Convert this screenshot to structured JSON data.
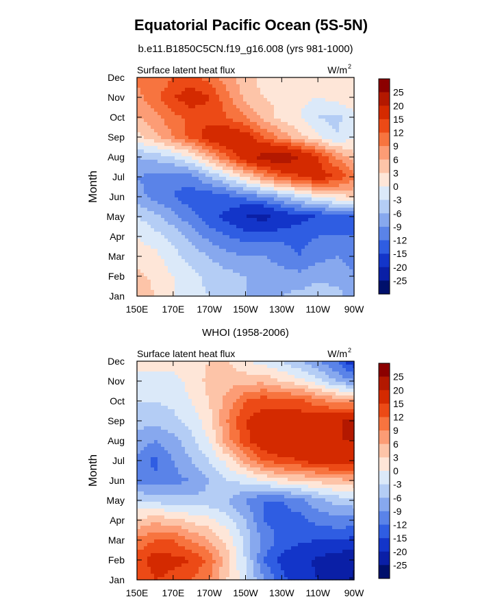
{
  "title": "Equatorial Pacific Ocean (5S-5N)",
  "colorbar": {
    "labels": [
      "25",
      "20",
      "15",
      "12",
      "9",
      "6",
      "3",
      "0",
      "-3",
      "-6",
      "-9",
      "-12",
      "-15",
      "-20",
      "-25"
    ],
    "colors_top_to_bottom": [
      "#8b0000",
      "#b31800",
      "#d42a00",
      "#ec4a16",
      "#f7743f",
      "#fc9c75",
      "#fdc4a8",
      "#fee6d8",
      "#dbe9f9",
      "#b4cdf5",
      "#87a8ee",
      "#5a83e8",
      "#2f5de2",
      "#1335c9",
      "#0a1fa6",
      "#00106b"
    ]
  },
  "chart_data": [
    {
      "type": "heatmap",
      "title": "b.e11.B1850C5CN.f19_g16.008 (yrs 981-1000)",
      "left_label": "Surface latent heat flux",
      "units": "W/m",
      "units_exp": "2",
      "ylabel": "Month",
      "x_ticks": [
        "150E",
        "170E",
        "170W",
        "150W",
        "130W",
        "110W",
        "90W"
      ],
      "y_ticks": [
        "Jan",
        "Feb",
        "Mar",
        "Apr",
        "May",
        "Jun",
        "Jul",
        "Aug",
        "Sep",
        "Oct",
        "Nov",
        "Dec"
      ],
      "values": [
        [
          6,
          3,
          0,
          -2,
          -3,
          -5,
          -6,
          -7,
          -6,
          -5,
          -4,
          -5,
          -7
        ],
        [
          4,
          2,
          0,
          -2,
          -4,
          -5,
          -6,
          -7,
          -8,
          -8,
          -7,
          -7,
          -9
        ],
        [
          2,
          1,
          -2,
          -4,
          -6,
          -8,
          -9,
          -9,
          -10,
          -12,
          -10,
          -9,
          -10
        ],
        [
          0,
          -2,
          -4,
          -7,
          -10,
          -12,
          -13,
          -13,
          -13,
          -13,
          -12,
          -12,
          -12
        ],
        [
          -3,
          -5,
          -8,
          -11,
          -14,
          -16,
          -20,
          -22,
          -18,
          -16,
          -15,
          -14,
          -13
        ],
        [
          -8,
          -10,
          -12,
          -14,
          -14,
          -13,
          -11,
          -9,
          -6,
          -3,
          0,
          2,
          3
        ],
        [
          -9,
          -10,
          -11,
          -10,
          -6,
          -2,
          3,
          8,
          12,
          15,
          17,
          15,
          10
        ],
        [
          -6,
          -5,
          -3,
          0,
          6,
          12,
          18,
          22,
          24,
          20,
          15,
          9,
          4
        ],
        [
          2,
          5,
          9,
          13,
          17,
          19,
          17,
          12,
          8,
          4,
          1,
          -3,
          0
        ],
        [
          6,
          8,
          11,
          13,
          14,
          12,
          9,
          5,
          2,
          0,
          -3,
          -4,
          -1
        ],
        [
          8,
          11,
          15,
          17,
          15,
          10,
          5,
          3,
          2,
          1,
          0,
          1,
          3
        ],
        [
          10,
          9,
          12,
          13,
          11,
          7,
          4,
          2,
          1,
          0,
          1,
          2,
          3
        ]
      ]
    },
    {
      "type": "heatmap",
      "title": "WHOI (1958-2006)",
      "left_label": "Surface latent heat flux",
      "units": "W/m",
      "units_exp": "2",
      "ylabel": "Month",
      "x_ticks": [
        "150E",
        "170E",
        "170W",
        "150W",
        "130W",
        "110W",
        "90W"
      ],
      "y_ticks": [
        "Jan",
        "Feb",
        "Mar",
        "Apr",
        "May",
        "Jun",
        "Jul",
        "Aug",
        "Sep",
        "Oct",
        "Nov",
        "Dec"
      ],
      "values": [
        [
          12,
          15,
          14,
          12,
          9,
          3,
          -2,
          -9,
          -14,
          -17,
          -20,
          -22,
          -26
        ],
        [
          13,
          17,
          16,
          15,
          11,
          4,
          -3,
          -12,
          -16,
          -19,
          -21,
          -23,
          -24
        ],
        [
          10,
          12,
          12,
          9,
          6,
          2,
          -4,
          -10,
          -13,
          -14,
          -15,
          -15,
          -16
        ],
        [
          3,
          5,
          4,
          2,
          1,
          -2,
          -6,
          -12,
          -13,
          -13,
          -11,
          -10,
          -10
        ],
        [
          -3,
          -4,
          -5,
          -5,
          -5,
          -6,
          -9,
          -12,
          -12,
          -10,
          -7,
          -5,
          -4
        ],
        [
          -10,
          -11,
          -10,
          -9,
          -6,
          -3,
          -2,
          0,
          2,
          3,
          4,
          5,
          6
        ],
        [
          -10,
          -13,
          -9,
          -6,
          -3,
          1,
          7,
          12,
          14,
          15,
          17,
          18,
          17
        ],
        [
          -7,
          -9,
          -7,
          -4,
          0,
          8,
          14,
          18,
          19,
          17,
          19,
          20,
          20
        ],
        [
          -5,
          -5,
          -4,
          -2,
          2,
          9,
          15,
          17,
          17,
          17,
          18,
          19,
          22
        ],
        [
          -3,
          -3,
          -2,
          0,
          3,
          7,
          12,
          14,
          13,
          13,
          10,
          8,
          7
        ],
        [
          -1,
          -1,
          -1,
          1,
          4,
          5,
          5,
          5,
          3,
          1,
          -2,
          -6,
          -9
        ],
        [
          1,
          1,
          1,
          2,
          3,
          3,
          0,
          -1,
          -3,
          -6,
          -9,
          -12,
          -18
        ]
      ]
    }
  ]
}
